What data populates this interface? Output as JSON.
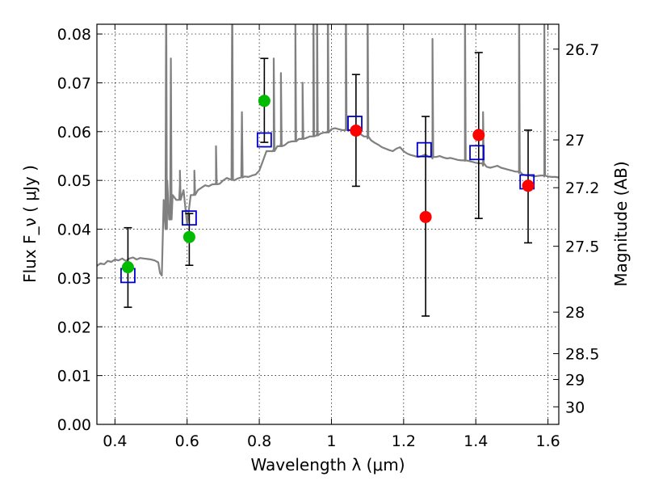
{
  "chart_data": {
    "type": "scatter",
    "xlabel": "Wavelength  λ (μm)",
    "ylabel": "Flux  F_ν  ( μJy )",
    "y2label": "Magnitude (AB)",
    "xlim": [
      0.35,
      1.63
    ],
    "ylim": [
      0.0,
      0.082
    ],
    "grid": true,
    "x_ticks": [
      {
        "value": 0.4,
        "label": "0.4"
      },
      {
        "value": 0.6,
        "label": "0.6"
      },
      {
        "value": 0.8,
        "label": "0.8"
      },
      {
        "value": 1.0,
        "label": "1"
      },
      {
        "value": 1.2,
        "label": "1.2"
      },
      {
        "value": 1.4,
        "label": "1.4"
      },
      {
        "value": 1.6,
        "label": "1.6"
      }
    ],
    "y_ticks": [
      {
        "value": 0.0,
        "label": "0.00"
      },
      {
        "value": 0.01,
        "label": "0.01"
      },
      {
        "value": 0.02,
        "label": "0.02"
      },
      {
        "value": 0.03,
        "label": "0.03"
      },
      {
        "value": 0.04,
        "label": "0.04"
      },
      {
        "value": 0.05,
        "label": "0.05"
      },
      {
        "value": 0.06,
        "label": "0.06"
      },
      {
        "value": 0.07,
        "label": "0.07"
      },
      {
        "value": 0.08,
        "label": "0.08"
      }
    ],
    "mag_ticks": [
      {
        "label": "26.7",
        "flux": 0.0769
      },
      {
        "label": "27",
        "flux": 0.0583
      },
      {
        "label": "27.2",
        "flux": 0.0485
      },
      {
        "label": "27.5",
        "flux": 0.0365
      },
      {
        "label": "28",
        "flux": 0.023
      },
      {
        "label": "28.5",
        "flux": 0.0145
      },
      {
        "label": "29",
        "flux": 0.0092
      },
      {
        "label": "30",
        "flux": 0.0036
      }
    ],
    "series": [
      {
        "kind": "line",
        "color": "#808080",
        "x": [
          0.35,
          0.36,
          0.37,
          0.38,
          0.39,
          0.4,
          0.41,
          0.42,
          0.43,
          0.44,
          0.45,
          0.46,
          0.47,
          0.48,
          0.49,
          0.5,
          0.51,
          0.52,
          0.525,
          0.53,
          0.535,
          0.54,
          0.545,
          0.55,
          0.56,
          0.57,
          0.58,
          0.59,
          0.6,
          0.61,
          0.62,
          0.63,
          0.64,
          0.65,
          0.66,
          0.67,
          0.68,
          0.69,
          0.7,
          0.71,
          0.72,
          0.73,
          0.74,
          0.75,
          0.76,
          0.77,
          0.78,
          0.79,
          0.8,
          0.81,
          0.82,
          0.83,
          0.84,
          0.85,
          0.86,
          0.87,
          0.88,
          0.89,
          0.9,
          0.91,
          0.92,
          0.93,
          0.94,
          0.95,
          0.96,
          0.97,
          0.98,
          0.99,
          1.0,
          1.01,
          1.02,
          1.03,
          1.04,
          1.05,
          1.06,
          1.07,
          1.08,
          1.09,
          1.1,
          1.11,
          1.12,
          1.13,
          1.14,
          1.15,
          1.16,
          1.17,
          1.18,
          1.19,
          1.2,
          1.21,
          1.22,
          1.23,
          1.24,
          1.25,
          1.26,
          1.27,
          1.28,
          1.29,
          1.3,
          1.31,
          1.32,
          1.33,
          1.34,
          1.35,
          1.36,
          1.37,
          1.38,
          1.39,
          1.4,
          1.41,
          1.42,
          1.43,
          1.44,
          1.45,
          1.46,
          1.47,
          1.48,
          1.49,
          1.5,
          1.51,
          1.52,
          1.53,
          1.54,
          1.55,
          1.56,
          1.57,
          1.58,
          1.59,
          1.6,
          1.61,
          1.62,
          1.63
        ],
        "y": [
          0.0325,
          0.033,
          0.0328,
          0.0335,
          0.0333,
          0.0338,
          0.0336,
          0.034,
          0.0335,
          0.034,
          0.0342,
          0.0338,
          0.0341,
          0.034,
          0.0339,
          0.0338,
          0.0336,
          0.0332,
          0.031,
          0.0305,
          0.046,
          0.04,
          0.05,
          0.042,
          0.047,
          0.046,
          0.049,
          0.048,
          0.041,
          0.047,
          0.0475,
          0.048,
          0.0485,
          0.049,
          0.0488,
          0.0492,
          0.0495,
          0.0493,
          0.05,
          0.0505,
          0.0502,
          0.05,
          0.0504,
          0.0506,
          0.0508,
          0.0507,
          0.051,
          0.0512,
          0.052,
          0.054,
          0.056,
          0.056,
          0.0565,
          0.057,
          0.0575,
          0.0572,
          0.0578,
          0.058,
          0.0582,
          0.0585,
          0.0588,
          0.0587,
          0.059,
          0.0592,
          0.0595,
          0.0596,
          0.0598,
          0.06,
          0.0605,
          0.0607,
          0.0605,
          0.0603,
          0.0606,
          0.0603,
          0.06,
          0.0597,
          0.0595,
          0.059,
          0.0586,
          0.0582,
          0.0577,
          0.0573,
          0.0568,
          0.0565,
          0.0562,
          0.056,
          0.0565,
          0.0568,
          0.056,
          0.0555,
          0.0552,
          0.055,
          0.0548,
          0.055,
          0.0553,
          0.0548,
          0.0545,
          0.0548,
          0.055,
          0.0547,
          0.0545,
          0.0546,
          0.0544,
          0.0542,
          0.0541,
          0.054,
          0.054,
          0.0538,
          0.0536,
          0.0535,
          0.053,
          0.0528,
          0.0526,
          0.0528,
          0.053,
          0.0526,
          0.0524,
          0.0522,
          0.052,
          0.0518,
          0.0515,
          0.0512,
          0.051,
          0.051,
          0.0508,
          0.0509,
          0.051,
          0.0508,
          0.0508,
          0.0507,
          0.0507,
          0.0506
        ],
        "spikes": [
          {
            "x": 0.542,
            "y": 0.09
          },
          {
            "x": 0.555,
            "y": 0.075
          },
          {
            "x": 0.58,
            "y": 0.052
          },
          {
            "x": 0.62,
            "y": 0.052
          },
          {
            "x": 0.68,
            "y": 0.057
          },
          {
            "x": 0.725,
            "y": 0.09
          },
          {
            "x": 0.752,
            "y": 0.064
          },
          {
            "x": 0.84,
            "y": 0.075
          },
          {
            "x": 0.86,
            "y": 0.072
          },
          {
            "x": 0.9,
            "y": 0.082
          },
          {
            "x": 0.92,
            "y": 0.07
          },
          {
            "x": 0.95,
            "y": 0.09
          },
          {
            "x": 0.96,
            "y": 0.09
          },
          {
            "x": 0.99,
            "y": 0.09
          },
          {
            "x": 1.04,
            "y": 0.09
          },
          {
            "x": 1.1,
            "y": 0.09
          },
          {
            "x": 1.28,
            "y": 0.079
          },
          {
            "x": 1.37,
            "y": 0.088
          },
          {
            "x": 1.42,
            "y": 0.064
          },
          {
            "x": 1.52,
            "y": 0.09
          },
          {
            "x": 1.59,
            "y": 0.082
          }
        ]
      },
      {
        "kind": "errorbars",
        "color": "#000000",
        "points": [
          {
            "x": 0.436,
            "y": 0.0322,
            "lo": 0.024,
            "hi": 0.0403
          },
          {
            "x": 0.606,
            "y": 0.0384,
            "lo": 0.0326,
            "hi": 0.0432
          },
          {
            "x": 0.814,
            "y": 0.0663,
            "lo": 0.0578,
            "hi": 0.075
          },
          {
            "x": 1.068,
            "y": 0.0602,
            "lo": 0.0488,
            "hi": 0.0717
          },
          {
            "x": 1.261,
            "y": 0.0425,
            "lo": 0.0222,
            "hi": 0.0631
          },
          {
            "x": 1.408,
            "y": 0.0593,
            "lo": 0.0422,
            "hi": 0.0762
          },
          {
            "x": 1.545,
            "y": 0.0489,
            "lo": 0.0372,
            "hi": 0.0603
          }
        ]
      },
      {
        "kind": "square-markers",
        "color": "#0000cc",
        "x": [
          0.436,
          0.606,
          0.814,
          1.065,
          1.257,
          1.403,
          1.542
        ],
        "y": [
          0.0305,
          0.0423,
          0.0583,
          0.0617,
          0.0563,
          0.0557,
          0.0497
        ]
      },
      {
        "kind": "circle-markers",
        "color": "#00bb00",
        "x": [
          0.436,
          0.606,
          0.814
        ],
        "y": [
          0.0322,
          0.0384,
          0.0663
        ]
      },
      {
        "kind": "circle-markers",
        "color": "#ff0000",
        "x": [
          1.068,
          1.261,
          1.408,
          1.545
        ],
        "y": [
          0.0602,
          0.0425,
          0.0593,
          0.0489
        ]
      }
    ]
  }
}
